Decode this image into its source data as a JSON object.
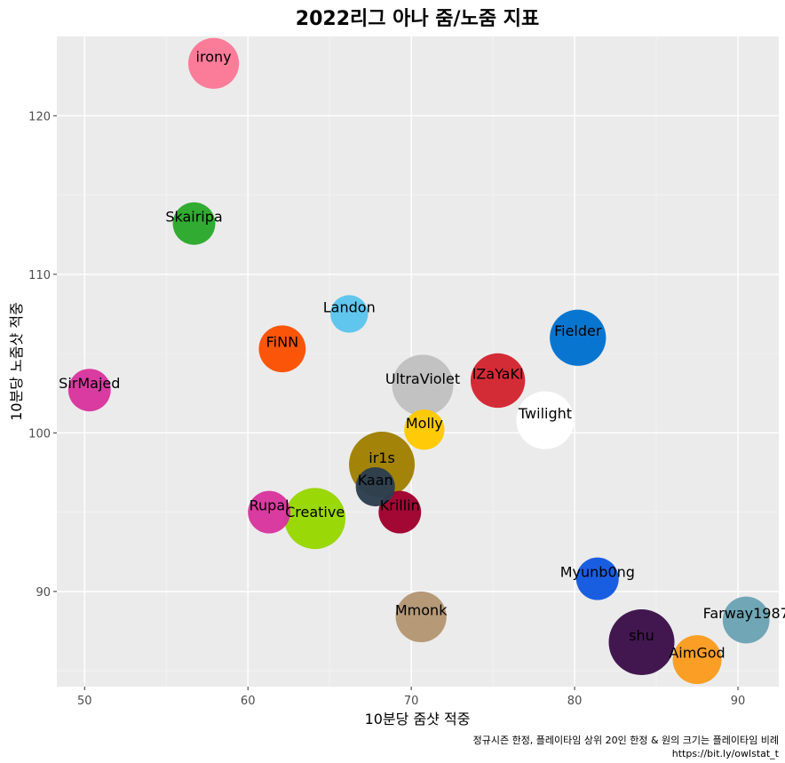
{
  "chart_data": {
    "type": "scatter",
    "title": "2022리그 아나 줌/노줌 지표",
    "xlabel": "10분당 줌샷 적중",
    "ylabel": "10분당 노줌샷 적중",
    "xlim": [
      48.3,
      92.5
    ],
    "ylim": [
      84,
      125
    ],
    "x_ticks": [
      50,
      60,
      70,
      80,
      90
    ],
    "y_ticks": [
      90,
      100,
      110,
      120
    ],
    "grid": true,
    "legend": "none",
    "caption_line1": "정규시즌 한정, 플레이타임 상위 20인 한정 & 원의 크기는 플레이타임 비례",
    "caption_line2": "https://bit.ly/owlstat_t",
    "points": [
      {
        "name": "irony",
        "x": 57.9,
        "y": 123.3,
        "size": 0.55,
        "color": "#fa7896"
      },
      {
        "name": "Skairipa",
        "x": 56.7,
        "y": 113.2,
        "size": 0.35,
        "color": "#2aa82a"
      },
      {
        "name": "Landon",
        "x": 66.2,
        "y": 107.5,
        "size": 0.25,
        "color": "#5bc4ec"
      },
      {
        "name": "FiNN",
        "x": 62.1,
        "y": 105.3,
        "size": 0.45,
        "color": "#fa4f00"
      },
      {
        "name": "SirMajed",
        "x": 50.3,
        "y": 102.7,
        "size": 0.35,
        "color": "#d8359e"
      },
      {
        "name": "UltraViolet",
        "x": 70.7,
        "y": 103.0,
        "size": 0.85,
        "color": "#c0c0c0"
      },
      {
        "name": "lZaYaKl",
        "x": 75.3,
        "y": 103.3,
        "size": 0.65,
        "color": "#d3252f"
      },
      {
        "name": "Fielder",
        "x": 80.2,
        "y": 106.0,
        "size": 0.7,
        "color": "#0072ce"
      },
      {
        "name": "Twilight",
        "x": 78.2,
        "y": 100.8,
        "size": 0.75,
        "color": "#ffffff"
      },
      {
        "name": "Molly",
        "x": 70.8,
        "y": 100.2,
        "size": 0.3,
        "color": "#ffc800"
      },
      {
        "name": "ir1s",
        "x": 68.2,
        "y": 98.0,
        "size": 1.0,
        "color": "#a08000"
      },
      {
        "name": "Kaan",
        "x": 67.8,
        "y": 96.6,
        "size": 0.28,
        "color": "#2c3e50"
      },
      {
        "name": "Rupal",
        "x": 61.3,
        "y": 95.0,
        "size": 0.35,
        "color": "#d8359e"
      },
      {
        "name": "Creative",
        "x": 64.1,
        "y": 94.6,
        "size": 0.85,
        "color": "#97d700"
      },
      {
        "name": "Krillin",
        "x": 69.3,
        "y": 95.0,
        "size": 0.35,
        "color": "#a0002e"
      },
      {
        "name": "Myunb0ng",
        "x": 81.4,
        "y": 90.8,
        "size": 0.35,
        "color": "#1259e0"
      },
      {
        "name": "Mmonk",
        "x": 70.6,
        "y": 88.4,
        "size": 0.55,
        "color": "#b49673"
      },
      {
        "name": "shu",
        "x": 84.1,
        "y": 86.8,
        "size": 1.0,
        "color": "#3c0f4a"
      },
      {
        "name": "AimGod",
        "x": 87.5,
        "y": 85.7,
        "size": 0.5,
        "color": "#fa9b1e"
      },
      {
        "name": "Farway1987",
        "x": 90.5,
        "y": 88.2,
        "size": 0.45,
        "color": "#6ba3b3"
      }
    ]
  }
}
